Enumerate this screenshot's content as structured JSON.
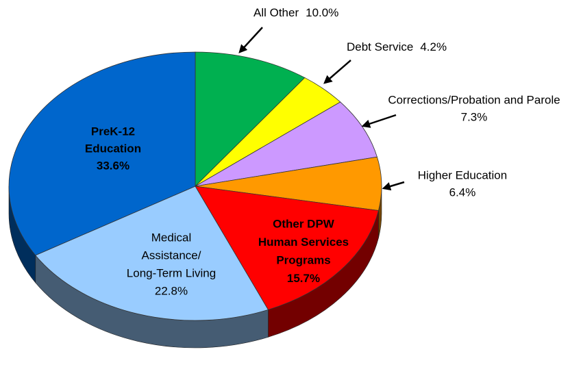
{
  "chart_data": {
    "type": "pie",
    "categories": [
      [
        "All Other"
      ],
      [
        "Debt Service"
      ],
      [
        "Corrections/Probation and Parole"
      ],
      [
        "Higher Education"
      ],
      [
        "Other DPW",
        "Human Services",
        "Programs"
      ],
      [
        "Medical",
        "Assistance/",
        "Long-Term Living"
      ],
      [
        "PreK-12",
        "Education"
      ]
    ],
    "values": [
      10.0,
      4.2,
      7.3,
      6.4,
      15.7,
      22.8,
      33.6
    ],
    "value_labels": [
      "10.0%",
      "4.2%",
      "7.3%",
      "6.4%",
      "15.7%",
      "22.8%",
      "33.6%"
    ],
    "colors": [
      "#00b050",
      "#ffff00",
      "#cc99ff",
      "#ff9900",
      "#ff0000",
      "#99ccff",
      "#0066cc"
    ]
  }
}
